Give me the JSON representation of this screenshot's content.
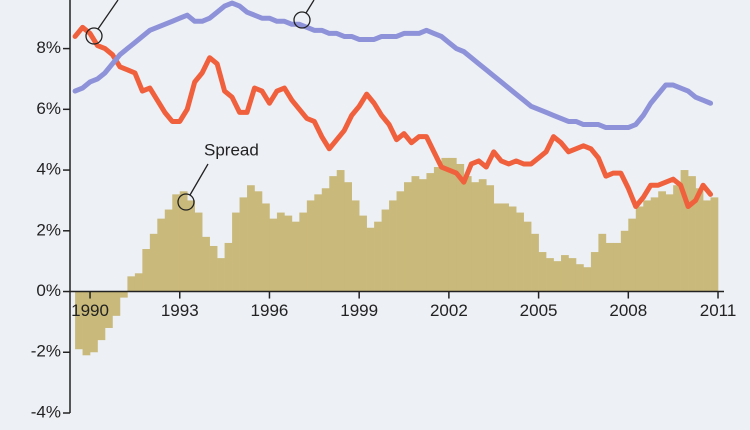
{
  "chart_data": {
    "type": "bar",
    "x": [
      1989.5,
      1989.75,
      1990,
      1990.25,
      1990.5,
      1990.75,
      1991,
      1991.25,
      1991.5,
      1991.75,
      1992,
      1992.25,
      1992.5,
      1992.75,
      1993,
      1993.25,
      1993.5,
      1993.75,
      1994,
      1994.25,
      1994.5,
      1994.75,
      1995,
      1995.25,
      1995.5,
      1995.75,
      1996,
      1996.25,
      1996.5,
      1996.75,
      1997,
      1997.25,
      1997.5,
      1997.75,
      1998,
      1998.25,
      1998.5,
      1998.75,
      1999,
      1999.25,
      1999.5,
      1999.75,
      2000,
      2000.25,
      2000.5,
      2000.75,
      2001,
      2001.25,
      2001.5,
      2001.75,
      2002,
      2002.25,
      2002.5,
      2002.75,
      2003,
      2003.25,
      2003.5,
      2003.75,
      2004,
      2004.25,
      2004.5,
      2004.75,
      2005,
      2005.25,
      2005.5,
      2005.75,
      2006,
      2006.25,
      2006.5,
      2006.75,
      2007,
      2007.25,
      2007.5,
      2007.75,
      2008,
      2008.25,
      2008.5,
      2008.75,
      2009,
      2009.25,
      2009.5,
      2009.75,
      2010,
      2010.25,
      2010.5,
      2010.75
    ],
    "series": [
      {
        "name": "Spread",
        "type": "bar",
        "color": "#c9b97a",
        "values": [
          -1.9,
          -2.1,
          -2.0,
          -1.6,
          -1.2,
          -0.8,
          -0.2,
          0.5,
          0.6,
          1.4,
          1.9,
          2.4,
          2.7,
          3.2,
          3.3,
          3.0,
          2.6,
          1.8,
          1.5,
          1.1,
          1.6,
          2.6,
          3.1,
          3.5,
          3.3,
          2.9,
          2.4,
          2.6,
          2.5,
          2.3,
          2.6,
          3.0,
          3.2,
          3.4,
          3.8,
          4.0,
          3.6,
          3.0,
          2.5,
          2.1,
          2.3,
          2.7,
          3.0,
          3.3,
          3.6,
          3.8,
          3.7,
          3.9,
          4.1,
          4.4,
          4.4,
          4.2,
          3.8,
          3.6,
          3.7,
          3.5,
          2.9,
          2.9,
          2.8,
          2.6,
          2.3,
          1.9,
          1.3,
          1.1,
          1.0,
          1.2,
          1.1,
          0.9,
          0.8,
          1.3,
          1.9,
          1.6,
          1.6,
          2.0,
          2.4,
          2.8,
          3.0,
          3.1,
          3.3,
          3.2,
          3.5,
          4.0,
          3.8,
          3.4,
          3.0,
          3.1
        ]
      },
      {
        "type": "line",
        "color": "#f0603c",
        "values": [
          8.4,
          8.7,
          8.5,
          8.1,
          8.0,
          7.8,
          7.4,
          7.3,
          7.2,
          6.6,
          6.7,
          6.3,
          5.9,
          5.6,
          5.6,
          6.0,
          6.9,
          7.2,
          7.7,
          7.5,
          6.6,
          6.4,
          5.9,
          5.9,
          6.7,
          6.6,
          6.2,
          6.6,
          6.7,
          6.3,
          6.0,
          5.7,
          5.6,
          5.1,
          4.7,
          5.0,
          5.3,
          5.8,
          6.1,
          6.5,
          6.2,
          5.8,
          5.5,
          5.0,
          5.2,
          4.9,
          5.1,
          5.1,
          4.6,
          4.1,
          4.0,
          3.9,
          3.6,
          4.2,
          4.3,
          4.1,
          4.6,
          4.3,
          4.2,
          4.3,
          4.2,
          4.2,
          4.4,
          4.6,
          5.1,
          4.9,
          4.6,
          4.7,
          4.8,
          4.7,
          4.4,
          3.8,
          3.9,
          3.9,
          3.4,
          2.8,
          3.1,
          3.5,
          3.5,
          3.6,
          3.7,
          3.5,
          2.8,
          3.0,
          3.5,
          3.2
        ]
      },
      {
        "type": "line",
        "color": "#8e92d8",
        "values": [
          6.6,
          6.7,
          6.9,
          7.0,
          7.2,
          7.5,
          7.8,
          8.0,
          8.2,
          8.4,
          8.6,
          8.7,
          8.8,
          8.9,
          9.0,
          9.1,
          8.9,
          8.9,
          9.0,
          9.2,
          9.4,
          9.5,
          9.4,
          9.2,
          9.1,
          9.0,
          9.0,
          8.9,
          8.9,
          8.8,
          8.8,
          8.7,
          8.6,
          8.6,
          8.5,
          8.5,
          8.4,
          8.4,
          8.3,
          8.3,
          8.3,
          8.4,
          8.4,
          8.4,
          8.5,
          8.5,
          8.5,
          8.6,
          8.5,
          8.4,
          8.2,
          8.0,
          7.9,
          7.7,
          7.5,
          7.3,
          7.1,
          6.9,
          6.7,
          6.5,
          6.3,
          6.1,
          6.0,
          5.9,
          5.8,
          5.7,
          5.6,
          5.6,
          5.5,
          5.5,
          5.5,
          5.4,
          5.4,
          5.4,
          5.4,
          5.5,
          5.8,
          6.2,
          6.5,
          6.8,
          6.8,
          6.7,
          6.6,
          6.4,
          6.3,
          6.2
        ]
      }
    ],
    "xlim": [
      1989.33,
      2011.2
    ],
    "xticks": [
      1990,
      1993,
      1996,
      1999,
      2002,
      2005,
      2008,
      2011
    ],
    "ylim": [
      -4,
      9.6
    ],
    "yticks": [
      {
        "value": -4,
        "label": "-4%"
      },
      {
        "value": -2,
        "label": "-2%"
      },
      {
        "value": 0,
        "label": "0%"
      },
      {
        "value": 2,
        "label": "2%"
      },
      {
        "value": 4,
        "label": "4%"
      },
      {
        "value": 6,
        "label": "6%"
      },
      {
        "value": 8,
        "label": "8%"
      }
    ]
  }
}
